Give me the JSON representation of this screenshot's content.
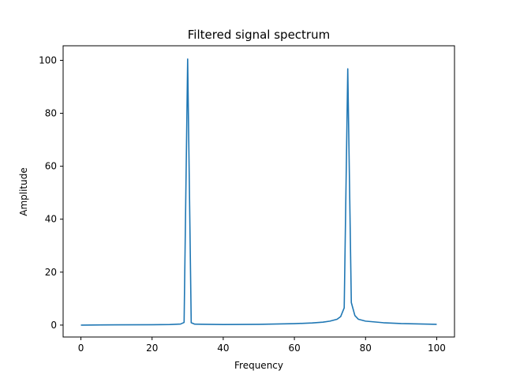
{
  "chart_data": {
    "type": "line",
    "title": "Filtered signal spectrum",
    "xlabel": "Frequency",
    "ylabel": "Amplitude",
    "xlim": [
      -5,
      105
    ],
    "ylim": [
      -4.5,
      105.5
    ],
    "xticks": [
      0,
      20,
      40,
      60,
      80,
      100
    ],
    "yticks": [
      0,
      20,
      40,
      60,
      80,
      100
    ],
    "grid": false,
    "legend": "none",
    "series": [
      {
        "color": "#1f77b4",
        "x": [
          0,
          10,
          20,
          25,
          28,
          29,
          30,
          31,
          32,
          40,
          50,
          60,
          65,
          68,
          70,
          72,
          73,
          74,
          75,
          76,
          77,
          78,
          80,
          85,
          90,
          95,
          100
        ],
        "y": [
          0,
          0.1,
          0.15,
          0.2,
          0.4,
          1.0,
          100.5,
          0.9,
          0.35,
          0.2,
          0.3,
          0.55,
          0.8,
          1.1,
          1.5,
          2.2,
          3.2,
          6.5,
          96.8,
          8.5,
          3.6,
          2.2,
          1.5,
          0.9,
          0.6,
          0.45,
          0.3
        ]
      }
    ]
  }
}
